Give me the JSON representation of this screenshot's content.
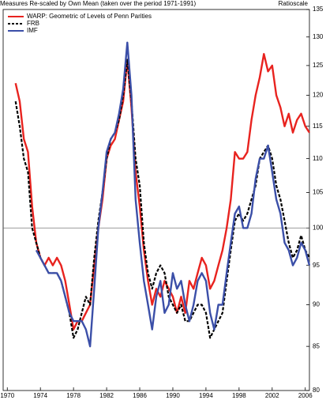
{
  "chart_data": {
    "type": "line",
    "title": "Measures Re-scaled by Own Mean (taken over the period 1971-1991)",
    "y_axis_label": "Ratioscale",
    "log_scale": true,
    "reference_line": 100,
    "legend": "top-left",
    "xlim": [
      1969.5,
      2006.5
    ],
    "xticks": [
      1970,
      1974,
      1978,
      1982,
      1986,
      1990,
      1994,
      1998,
      2002,
      2006
    ],
    "ylim": [
      80,
      135
    ],
    "yticks": [
      80,
      85,
      90,
      95,
      100,
      105,
      110,
      115,
      120,
      125,
      130,
      135
    ],
    "x": [
      1971,
      1971.5,
      1972,
      1972.5,
      1973,
      1973.5,
      1974,
      1974.5,
      1975,
      1975.5,
      1976,
      1976.5,
      1977,
      1977.5,
      1978,
      1978.5,
      1979,
      1979.5,
      1980,
      1980.5,
      1981,
      1981.5,
      1982,
      1982.5,
      1983,
      1983.5,
      1984,
      1984.5,
      1985,
      1985.5,
      1986,
      1986.5,
      1987,
      1987.5,
      1988,
      1988.5,
      1989,
      1989.5,
      1990,
      1990.5,
      1991,
      1991.5,
      1992,
      1992.5,
      1993,
      1993.5,
      1994,
      1994.5,
      1995,
      1995.5,
      1996,
      1996.5,
      1997,
      1997.5,
      1998,
      1998.5,
      1999,
      1999.5,
      2000,
      2000.5,
      2001,
      2001.5,
      2002,
      2002.5,
      2003,
      2003.5,
      2004,
      2004.5,
      2005,
      2005.5,
      2006,
      2006.5
    ],
    "series": [
      {
        "name": "WARP: Geometric of Levels of Penn Parities",
        "color": "#e8231f",
        "dashed": false,
        "values": [
          122,
          119,
          113,
          111,
          103,
          98,
          96,
          95,
          96,
          95,
          96,
          95,
          93,
          90,
          87,
          88,
          88,
          89,
          90,
          95,
          100,
          104,
          110,
          112,
          113,
          116,
          119,
          126,
          118,
          108,
          103,
          97,
          93,
          90,
          92,
          91,
          93,
          92,
          91,
          89,
          91,
          89,
          93,
          92,
          94,
          96,
          95,
          92,
          93,
          95,
          97,
          100,
          104,
          111,
          110,
          110,
          111,
          116,
          120,
          123,
          127,
          124,
          125,
          120,
          118,
          115,
          117,
          114,
          116,
          117,
          115,
          114
        ]
      },
      {
        "name": "FRB",
        "color": "#000000",
        "dashed": true,
        "values": [
          119,
          115,
          110,
          108,
          100,
          98,
          96,
          95,
          94,
          94,
          94,
          93,
          91,
          89,
          86,
          87,
          89,
          91,
          90,
          96,
          101,
          105,
          110,
          113,
          114,
          116,
          120,
          126,
          119,
          110,
          106,
          98,
          94,
          92,
          94,
          95,
          94,
          91,
          90,
          89,
          90,
          88,
          88,
          89,
          90,
          90,
          89,
          86,
          87,
          88,
          89,
          93,
          97,
          101,
          102,
          101,
          102,
          104,
          106,
          110,
          111,
          112,
          110,
          106,
          104,
          101,
          98,
          96,
          97,
          99,
          97,
          96
        ]
      },
      {
        "name": "IMF",
        "color": "#3b4fa8",
        "dashed": false,
        "values": [
          null,
          null,
          null,
          null,
          null,
          97,
          96,
          95,
          94,
          94,
          94,
          93,
          91,
          89,
          88,
          88,
          88,
          87,
          85,
          92,
          100,
          105,
          111,
          113,
          114,
          117,
          121,
          129,
          120,
          104,
          98,
          93,
          90,
          87,
          91,
          93,
          89,
          90,
          94,
          92,
          93,
          90,
          88,
          90,
          93,
          94,
          93,
          89,
          87,
          90,
          90,
          94,
          98,
          102,
          103,
          100,
          100,
          102,
          107,
          110,
          110,
          112,
          108,
          104,
          102,
          98,
          97,
          95,
          96,
          98,
          97,
          95
        ]
      }
    ]
  }
}
